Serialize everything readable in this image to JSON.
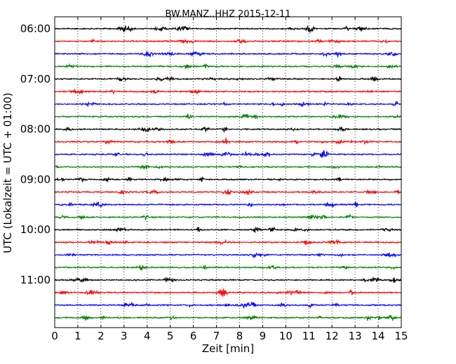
{
  "chart_data": {
    "type": "line",
    "title": "BW.MANZ..HHZ 2015-12-11",
    "xlabel": "Zeit  [min]",
    "ylabel": "UTC (Lokalzeit = UTC + 01:00)",
    "xlim": [
      0,
      15
    ],
    "x_ticks": [
      "0",
      "1",
      "2",
      "3",
      "4",
      "5",
      "6",
      "7",
      "8",
      "9",
      "10",
      "11",
      "12",
      "13",
      "14",
      "15"
    ],
    "y_tick_labels": [
      "06:00",
      "07:00",
      "08:00",
      "09:00",
      "10:00",
      "11:00"
    ],
    "trace_start_times": [
      "06:00",
      "06:15",
      "06:30",
      "06:45",
      "07:00",
      "07:15",
      "07:30",
      "07:45",
      "08:00",
      "08:15",
      "08:30",
      "08:45",
      "09:00",
      "09:15",
      "09:30",
      "09:45",
      "10:00",
      "10:15",
      "10:30",
      "10:45",
      "11:00",
      "11:15",
      "11:30",
      "11:45"
    ],
    "trace_colors": [
      "#000000",
      "#ff0000",
      "#0000ff",
      "#008000"
    ],
    "trace_minutes": 15,
    "grid": "vertical dotted lines at each minute"
  }
}
